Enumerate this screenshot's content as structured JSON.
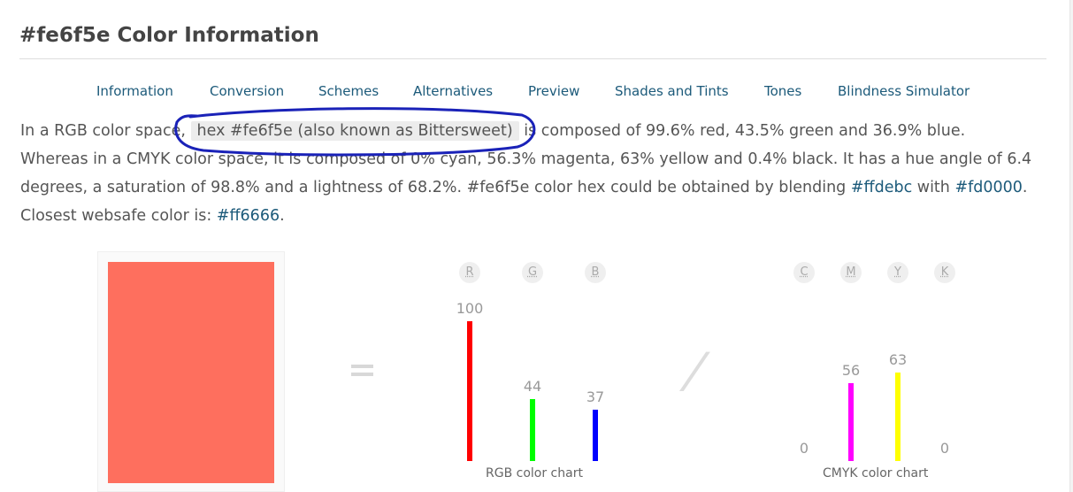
{
  "page": {
    "title": "#fe6f5e Color Information"
  },
  "tabs": [
    "Information",
    "Conversion",
    "Schemes",
    "Alternatives",
    "Preview",
    "Shades and Tints",
    "Tones",
    "Blindness Simulator"
  ],
  "description": {
    "p1": "In a RGB color space, ",
    "highlight": "hex #fe6f5e (also known as Bittersweet)",
    "p2": " is composed of 99.6% red, 43.5% green and 36.9% blue. Whereas in a CMYK color space, it is composed of 0% cyan, 56.3% magenta, 63% yellow and 0.4% black. It has a hue angle of 6.4 degrees, a saturation of 98.8% and a lightness of 68.2%. #fe6f5e color hex could be obtained by blending ",
    "link1": "#ffdebc",
    "p3": " with ",
    "link2": "#fd0000",
    "p4": ". Closest websafe color is: ",
    "link3": "#ff6666",
    "p5": "."
  },
  "swatch": {
    "color": "#fe6f5e"
  },
  "colors": {
    "link": "#1c5a7a",
    "annotation": "#1a22b8"
  },
  "chart_data": [
    {
      "type": "bar",
      "title": "RGB color chart",
      "categories": [
        "R",
        "G",
        "B"
      ],
      "values": [
        100,
        44,
        37
      ],
      "value_labels": [
        "100",
        "44",
        "37"
      ],
      "colors": [
        "#ff0000",
        "#00ff00",
        "#0000ff"
      ],
      "ylim": [
        0,
        100
      ]
    },
    {
      "type": "bar",
      "title": "CMYK color chart",
      "categories": [
        "C",
        "M",
        "Y",
        "K"
      ],
      "values": [
        0,
        56,
        63,
        0
      ],
      "value_labels": [
        "0",
        "56",
        "63",
        "0"
      ],
      "colors": [
        "#00ffff",
        "#ff00ff",
        "#ffff00",
        "#000000"
      ],
      "ylim": [
        0,
        100
      ]
    }
  ]
}
